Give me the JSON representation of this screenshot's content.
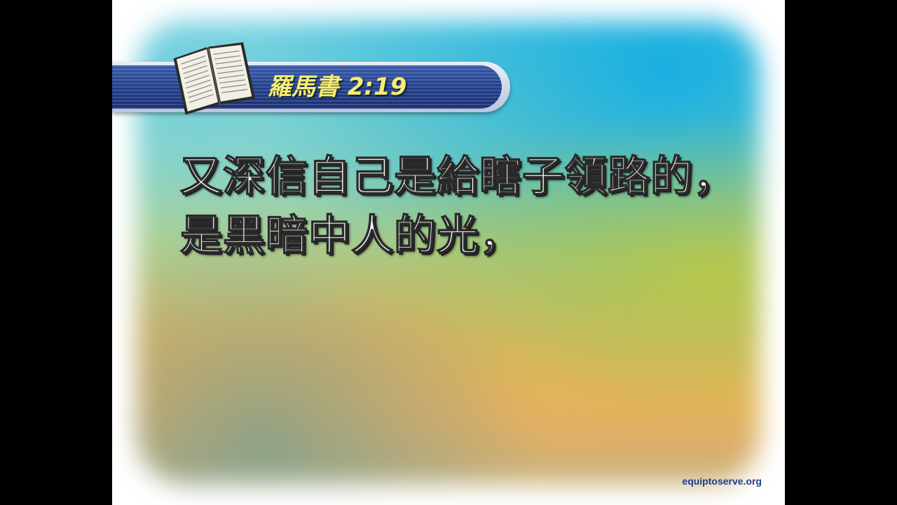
{
  "slide": {
    "title": "羅馬書 2:19",
    "verse": "又深信自己是給瞎子領路的，是黑暗中人的光，",
    "footer": "equiptoserve.org",
    "icon": "open-bible-icon"
  },
  "colors": {
    "banner": "#213f8c",
    "title_text": "#f5ee70",
    "verse_text": "#ffffff",
    "footer_text": "#1f3f8c",
    "side_bars": "#000000"
  }
}
